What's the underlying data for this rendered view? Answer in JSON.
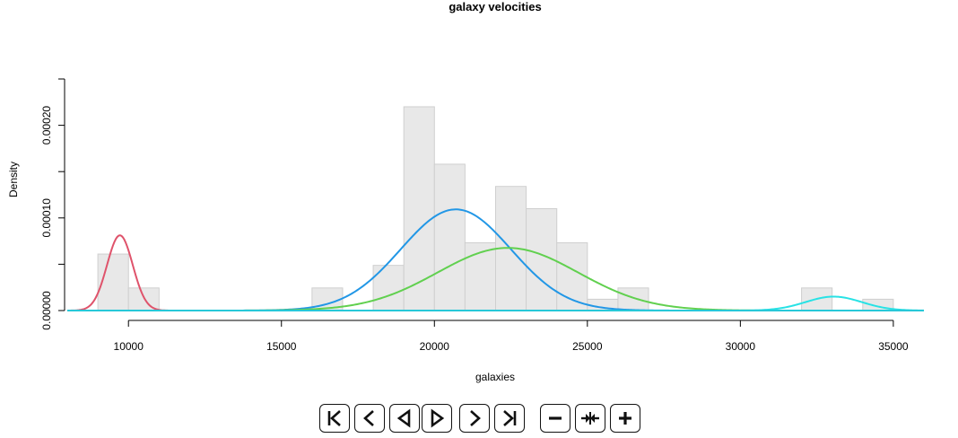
{
  "chart_data": {
    "type": "histogram",
    "title": "galaxy velocities",
    "xlabel": "galaxies",
    "ylabel": "Density",
    "xlim": [
      8000,
      36000
    ],
    "ylim": [
      0,
      0.00025
    ],
    "x_ticks": [
      10000,
      15000,
      20000,
      25000,
      30000,
      35000
    ],
    "x_tick_labels": [
      "10000",
      "15000",
      "20000",
      "25000",
      "30000",
      "35000"
    ],
    "y_ticks": [
      0,
      5e-05,
      0.0001,
      0.00015,
      0.0002,
      0.00025
    ],
    "y_tick_labels": [
      "0.00000",
      "",
      "0.00010",
      "",
      "0.00020",
      ""
    ],
    "grid": false,
    "histogram": {
      "bin_width": 1000,
      "bins": [
        {
          "start": 9000,
          "end": 10000,
          "density": 6.1e-05
        },
        {
          "start": 10000,
          "end": 11000,
          "density": 2.44e-05
        },
        {
          "start": 11000,
          "end": 12000,
          "density": 0
        },
        {
          "start": 12000,
          "end": 13000,
          "density": 0
        },
        {
          "start": 13000,
          "end": 14000,
          "density": 0
        },
        {
          "start": 14000,
          "end": 15000,
          "density": 0
        },
        {
          "start": 15000,
          "end": 16000,
          "density": 0
        },
        {
          "start": 16000,
          "end": 17000,
          "density": 2.44e-05
        },
        {
          "start": 17000,
          "end": 18000,
          "density": 0
        },
        {
          "start": 18000,
          "end": 19000,
          "density": 4.88e-05
        },
        {
          "start": 19000,
          "end": 20000,
          "density": 0.00022
        },
        {
          "start": 20000,
          "end": 21000,
          "density": 0.000158
        },
        {
          "start": 21000,
          "end": 22000,
          "density": 7.32e-05
        },
        {
          "start": 22000,
          "end": 23000,
          "density": 0.000134
        },
        {
          "start": 23000,
          "end": 24000,
          "density": 0.00011
        },
        {
          "start": 24000,
          "end": 25000,
          "density": 7.32e-05
        },
        {
          "start": 25000,
          "end": 26000,
          "density": 1.22e-05
        },
        {
          "start": 26000,
          "end": 27000,
          "density": 2.44e-05
        },
        {
          "start": 27000,
          "end": 28000,
          "density": 0
        },
        {
          "start": 28000,
          "end": 29000,
          "density": 0
        },
        {
          "start": 29000,
          "end": 30000,
          "density": 0
        },
        {
          "start": 30000,
          "end": 31000,
          "density": 0
        },
        {
          "start": 31000,
          "end": 32000,
          "density": 0
        },
        {
          "start": 32000,
          "end": 33000,
          "density": 2.44e-05
        },
        {
          "start": 33000,
          "end": 34000,
          "density": 0
        },
        {
          "start": 34000,
          "end": 35000,
          "density": 1.22e-05
        }
      ],
      "fill_color": "#e8e8e8",
      "border_color": "#cfcfcf"
    },
    "series": [
      {
        "type": "normal_density",
        "color": "#df536b",
        "mean": 9720,
        "sd": 420,
        "weight": 0.0855
      },
      {
        "type": "normal_density",
        "color": "#2297e6",
        "mean": 20700,
        "sd": 1800,
        "weight": 0.4928
      },
      {
        "type": "normal_density",
        "color": "#61d04f",
        "mean": 22400,
        "sd": 2300,
        "weight": 0.39
      },
      {
        "type": "normal_density",
        "color": "#28e2e5",
        "mean": 33050,
        "sd": 920,
        "weight": 0.0347
      },
      {
        "type": "normal_density",
        "color": "#28c8d8",
        "mean": 22000,
        "sd": 60000000,
        "weight": 1e-07
      }
    ]
  },
  "controls": [
    {
      "name": "first-frame-button",
      "icon": "first-icon"
    },
    {
      "name": "previous-frame-button",
      "icon": "previous-icon"
    },
    {
      "name": "play-reverse-button",
      "icon": "reverse-play-icon"
    },
    {
      "name": "play-forward-button",
      "icon": "play-icon"
    },
    {
      "name": "next-frame-button",
      "icon": "next-icon"
    },
    {
      "name": "last-frame-button",
      "icon": "last-icon"
    },
    {
      "name": "slower-button",
      "icon": "minus-icon"
    },
    {
      "name": "reset-speed-button",
      "icon": "reset-speed-icon"
    },
    {
      "name": "faster-button",
      "icon": "plus-icon"
    }
  ]
}
